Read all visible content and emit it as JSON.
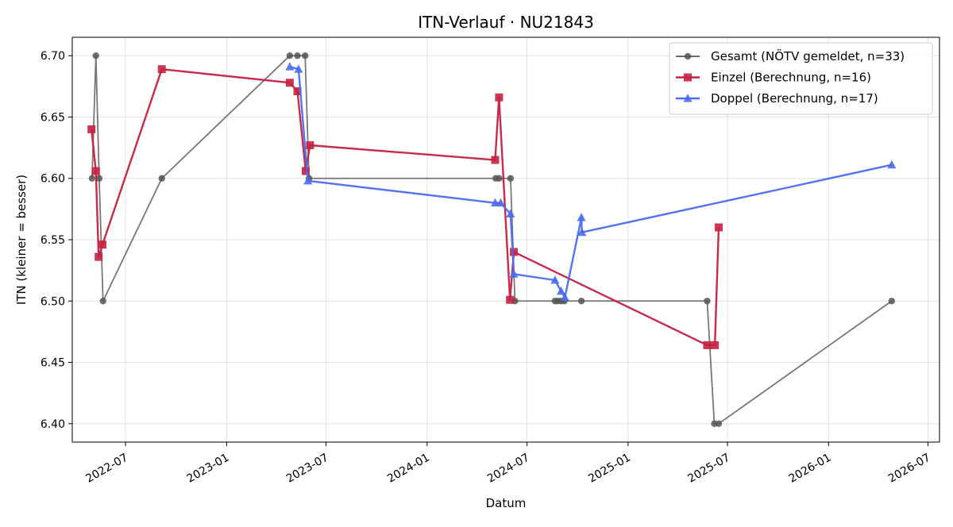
{
  "chart_data": {
    "type": "line",
    "title": "ITN-Verlauf · NU21843",
    "xlabel": "Datum",
    "ylabel": "ITN  (kleiner = besser)",
    "x_axis": "date",
    "xlim": [
      "2022-03-26",
      "2026-07-22"
    ],
    "ylim": [
      6.385,
      6.715
    ],
    "x_ticks": [
      "2022-07-01",
      "2023-01-01",
      "2023-07-01",
      "2024-01-01",
      "2024-07-01",
      "2025-01-01",
      "2025-07-01",
      "2026-01-01",
      "2026-07-01"
    ],
    "x_tick_labels": [
      "2022-07",
      "2023-01",
      "2023-07",
      "2024-01",
      "2024-07",
      "2025-01",
      "2025-07",
      "2026-01",
      "2026-07"
    ],
    "y_ticks": [
      6.4,
      6.45,
      6.5,
      6.55,
      6.6,
      6.65,
      6.7
    ],
    "y_tick_labels": [
      "6.40",
      "6.45",
      "6.50",
      "6.55",
      "6.60",
      "6.65",
      "6.70"
    ],
    "grid": true,
    "legend_position": "top-right",
    "series": [
      {
        "name": "Gesamt (NÖTV gemeldet, n=33)",
        "color": "#555555",
        "marker": "circle",
        "points": [
          {
            "x": "2022-05-01",
            "y": 6.6
          },
          {
            "x": "2022-05-08",
            "y": 6.7
          },
          {
            "x": "2022-05-14",
            "y": 6.6
          },
          {
            "x": "2022-05-21",
            "y": 6.5
          },
          {
            "x": "2022-09-05",
            "y": 6.6
          },
          {
            "x": "2023-04-26",
            "y": 6.7
          },
          {
            "x": "2023-05-10",
            "y": 6.7
          },
          {
            "x": "2023-05-24",
            "y": 6.7
          },
          {
            "x": "2023-05-31",
            "y": 6.6
          },
          {
            "x": "2024-05-05",
            "y": 6.6
          },
          {
            "x": "2024-05-11",
            "y": 6.6
          },
          {
            "x": "2024-06-01",
            "y": 6.6
          },
          {
            "x": "2024-06-09",
            "y": 6.5
          },
          {
            "x": "2024-08-21",
            "y": 6.5
          },
          {
            "x": "2024-08-26",
            "y": 6.5
          },
          {
            "x": "2024-09-01",
            "y": 6.5
          },
          {
            "x": "2024-09-07",
            "y": 6.5
          },
          {
            "x": "2024-10-08",
            "y": 6.5
          },
          {
            "x": "2025-05-25",
            "y": 6.5
          },
          {
            "x": "2025-06-07",
            "y": 6.4
          },
          {
            "x": "2025-06-15",
            "y": 6.4
          },
          {
            "x": "2026-04-26",
            "y": 6.5
          }
        ]
      },
      {
        "name": "Einzel (Berechnung, n=16)",
        "color": "#c42040",
        "marker": "square",
        "points": [
          {
            "x": "2022-04-30",
            "y": 6.64
          },
          {
            "x": "2022-05-08",
            "y": 6.606
          },
          {
            "x": "2022-05-13",
            "y": 6.536
          },
          {
            "x": "2022-05-20",
            "y": 6.546
          },
          {
            "x": "2022-09-05",
            "y": 6.689
          },
          {
            "x": "2023-04-26",
            "y": 6.678
          },
          {
            "x": "2023-05-10",
            "y": 6.671
          },
          {
            "x": "2023-05-25",
            "y": 6.606
          },
          {
            "x": "2023-06-02",
            "y": 6.627
          },
          {
            "x": "2024-05-04",
            "y": 6.615
          },
          {
            "x": "2024-05-11",
            "y": 6.666
          },
          {
            "x": "2024-05-31",
            "y": 6.501
          },
          {
            "x": "2024-06-07",
            "y": 6.54
          },
          {
            "x": "2025-05-25",
            "y": 6.464
          },
          {
            "x": "2025-06-08",
            "y": 6.464
          },
          {
            "x": "2025-06-15",
            "y": 6.56
          }
        ]
      },
      {
        "name": "Doppel (Berechnung, n=17)",
        "color": "#4a6cf0",
        "marker": "triangle",
        "points": [
          {
            "x": "2023-04-26",
            "y": 6.691
          },
          {
            "x": "2023-05-12",
            "y": 6.689
          },
          {
            "x": "2023-05-29",
            "y": 6.598
          },
          {
            "x": "2024-05-04",
            "y": 6.58
          },
          {
            "x": "2024-05-14",
            "y": 6.58
          },
          {
            "x": "2024-06-01",
            "y": 6.571
          },
          {
            "x": "2024-06-07",
            "y": 6.522
          },
          {
            "x": "2024-08-21",
            "y": 6.517
          },
          {
            "x": "2024-09-01",
            "y": 6.508
          },
          {
            "x": "2024-09-08",
            "y": 6.503
          },
          {
            "x": "2024-10-08",
            "y": 6.568
          },
          {
            "x": "2024-10-09",
            "y": 6.556
          },
          {
            "x": "2026-04-26",
            "y": 6.611
          }
        ]
      }
    ]
  }
}
